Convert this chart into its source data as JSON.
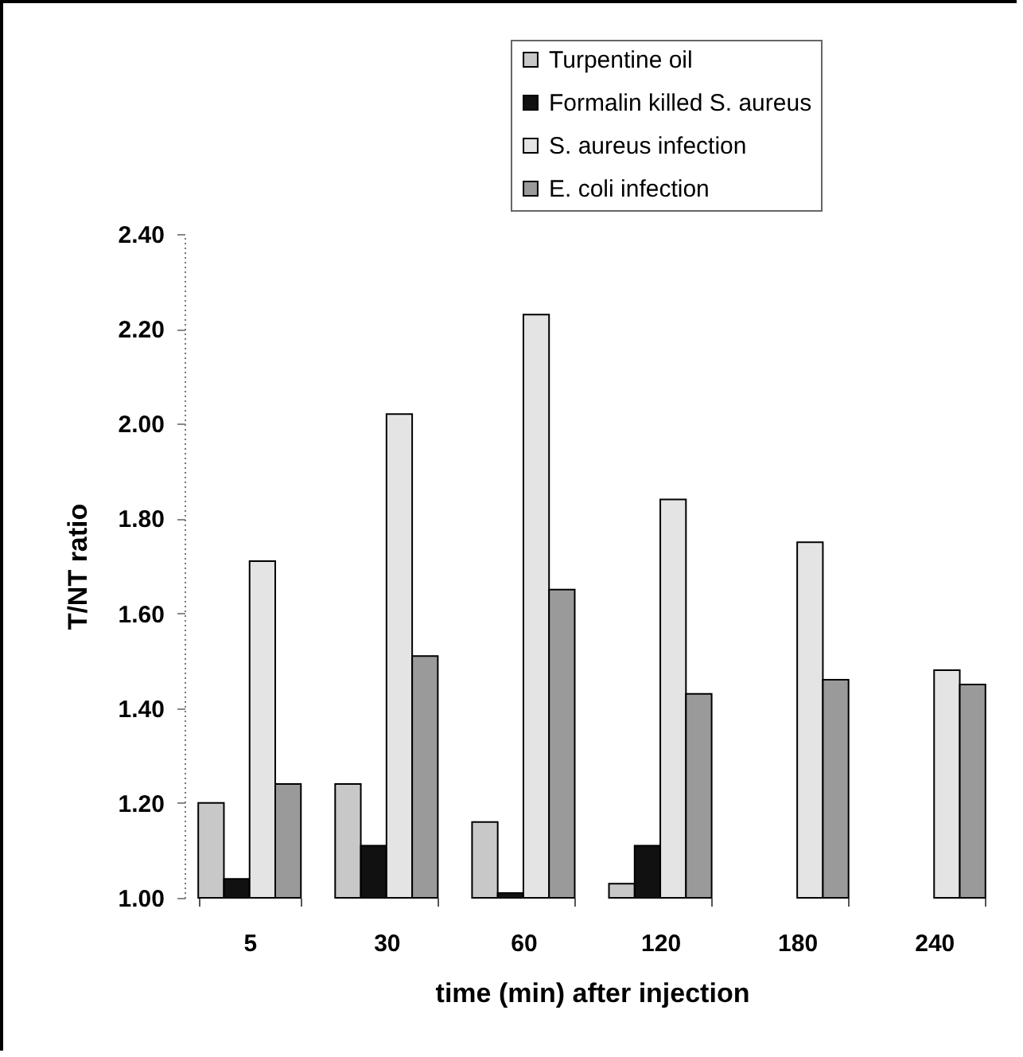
{
  "chart_data": {
    "type": "bar",
    "xlabel": "time (min) after injection",
    "ylabel": "T/NT ratio",
    "categories": [
      "5",
      "30",
      "60",
      "120",
      "180",
      "240"
    ],
    "series": [
      {
        "name": "Turpentine oil",
        "color": "#c8c8c8",
        "values": [
          1.2,
          1.24,
          1.16,
          1.03,
          null,
          null
        ]
      },
      {
        "name": "Formalin killed S. aureus",
        "color": "#111111",
        "values": [
          1.04,
          1.11,
          1.01,
          1.11,
          null,
          null
        ]
      },
      {
        "name": "S. aureus infection",
        "color": "#e4e4e4",
        "values": [
          1.71,
          2.02,
          2.23,
          1.84,
          1.75,
          1.48
        ]
      },
      {
        "name": "E. coli infection",
        "color": "#9a9a9a",
        "values": [
          1.24,
          1.51,
          1.65,
          1.43,
          1.46,
          1.45
        ]
      }
    ],
    "ylim": [
      1.0,
      2.4
    ],
    "yticks": [
      {
        "value": 1.0,
        "label": "1.00"
      },
      {
        "value": 1.2,
        "label": "1.20"
      },
      {
        "value": 1.4,
        "label": "1.40"
      },
      {
        "value": 1.6,
        "label": "1.60"
      },
      {
        "value": 1.8,
        "label": "1.80"
      },
      {
        "value": 2.0,
        "label": "2.00"
      },
      {
        "value": 2.2,
        "label": "2.20"
      },
      {
        "value": 2.4,
        "label": "2.40"
      }
    ],
    "legend": "top right",
    "grid": false
  }
}
